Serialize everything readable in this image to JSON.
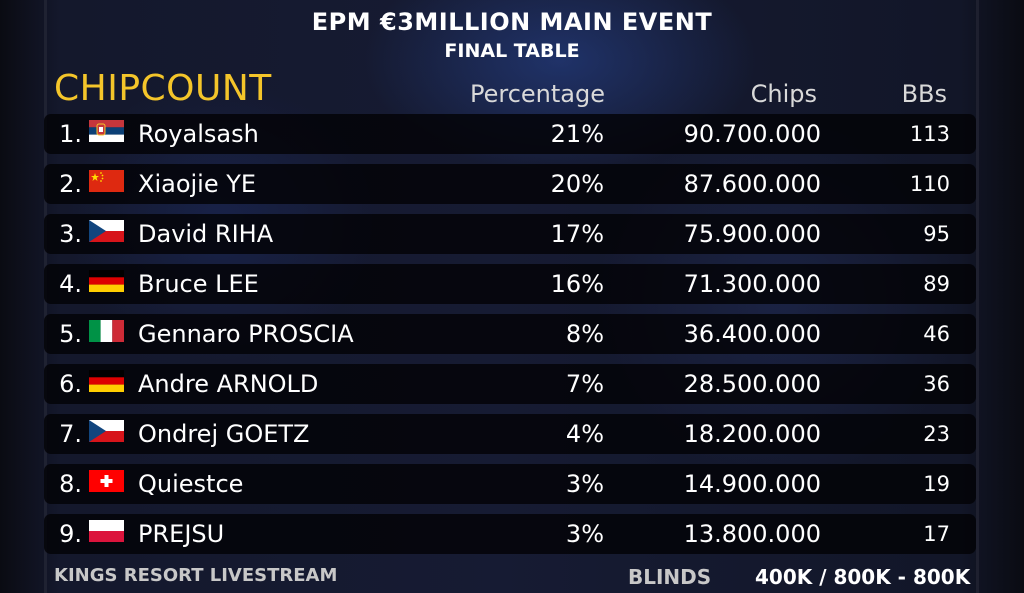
{
  "event": {
    "title": "EPM €3MILLION MAIN EVENT",
    "subtitle": "FINAL TABLE"
  },
  "section_title": "CHIPCOUNT",
  "columns": {
    "percentage": "Percentage",
    "chips": "Chips",
    "bbs": "BBs"
  },
  "players": [
    {
      "rank": "1.",
      "flag": "serbia-flag-icon",
      "name": "Royalsash",
      "percentage": "21%",
      "chips": "90.700.000",
      "bbs": "113"
    },
    {
      "rank": "2.",
      "flag": "china-flag-icon",
      "name": "Xiaojie YE",
      "percentage": "20%",
      "chips": "87.600.000",
      "bbs": "110"
    },
    {
      "rank": "3.",
      "flag": "czech-flag-icon",
      "name": "David RIHA",
      "percentage": "17%",
      "chips": "75.900.000",
      "bbs": "95"
    },
    {
      "rank": "4.",
      "flag": "germany-flag-icon",
      "name": "Bruce LEE",
      "percentage": "16%",
      "chips": "71.300.000",
      "bbs": "89"
    },
    {
      "rank": "5.",
      "flag": "italy-flag-icon",
      "name": "Gennaro PROSCIA",
      "percentage": "8%",
      "chips": "36.400.000",
      "bbs": "46"
    },
    {
      "rank": "6.",
      "flag": "germany-flag-icon",
      "name": "Andre ARNOLD",
      "percentage": "7%",
      "chips": "28.500.000",
      "bbs": "36"
    },
    {
      "rank": "7.",
      "flag": "czech-flag-icon",
      "name": "Ondrej GOETZ",
      "percentage": "4%",
      "chips": "18.200.000",
      "bbs": "23"
    },
    {
      "rank": "8.",
      "flag": "switzerland-flag-icon",
      "name": "Quiestce",
      "percentage": "3%",
      "chips": "14.900.000",
      "bbs": "19"
    },
    {
      "rank": "9.",
      "flag": "poland-flag-icon",
      "name": "PREJSU",
      "percentage": "3%",
      "chips": "13.800.000",
      "bbs": "17"
    }
  ],
  "footer": {
    "stream": "KINGS RESORT LIVESTREAM",
    "blinds_label": "BLINDS",
    "blinds_value": "400K / 800K - 800K"
  },
  "colors": {
    "accent": "#f4c52a",
    "row_bg": "#050508",
    "text": "#ffffff"
  }
}
